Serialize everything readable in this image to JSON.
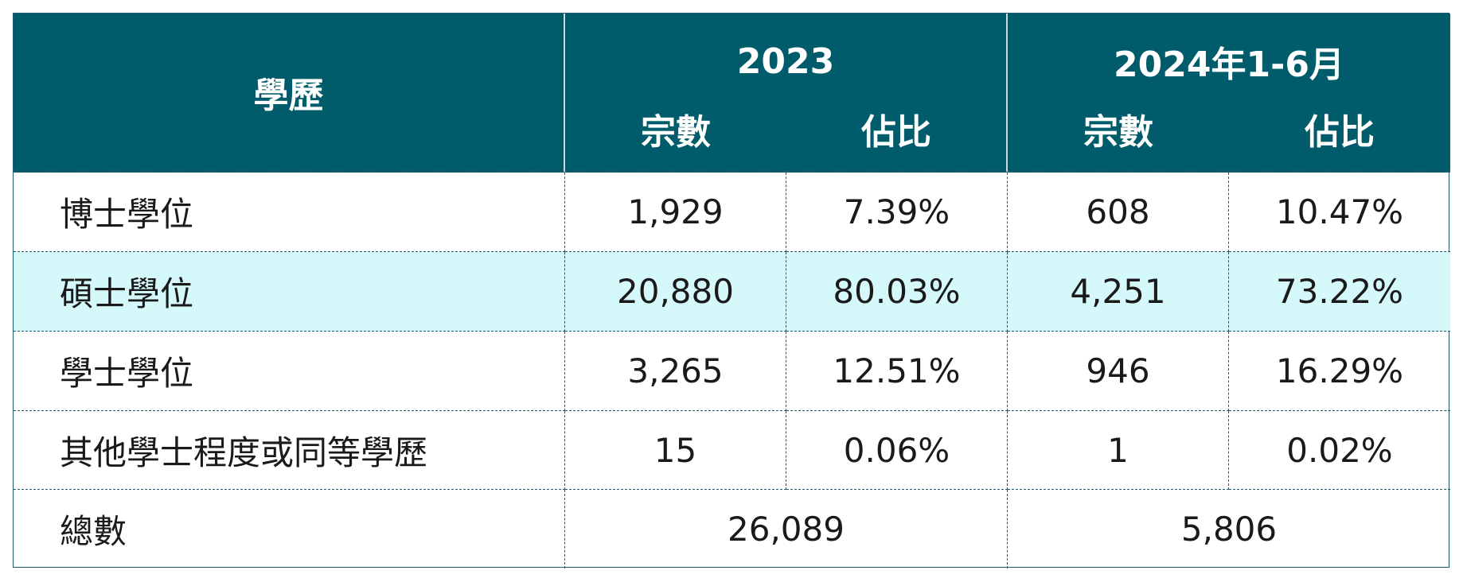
{
  "header": {
    "education": "學歷",
    "year_2023": "2023",
    "year_2024": "2024年1-6月",
    "count_2023": "宗數",
    "share_2023": "佔比",
    "count_2024": "宗數",
    "share_2024": "佔比"
  },
  "rows": [
    {
      "label": "博士學位",
      "count_2023": "1,929",
      "share_2023": "7.39%",
      "count_2024": "608",
      "share_2024": "10.47%"
    },
    {
      "label": "碩士學位",
      "count_2023": "20,880",
      "share_2023": "80.03%",
      "count_2024": "4,251",
      "share_2024": "73.22%"
    },
    {
      "label": "學士學位",
      "count_2023": "3,265",
      "share_2023": "12.51%",
      "count_2024": "946",
      "share_2024": "16.29%"
    },
    {
      "label": "其他學士程度或同等學歷",
      "count_2023": "15",
      "share_2023": "0.06%",
      "count_2024": "1",
      "share_2024": "0.02%"
    }
  ],
  "total": {
    "label": "總數",
    "value_2023": "26,089",
    "value_2024": "5,806"
  },
  "colors": {
    "header_bg": "#005c6a",
    "highlight_row_bg": "#d5f8fb",
    "border": "#1f5a6a"
  }
}
